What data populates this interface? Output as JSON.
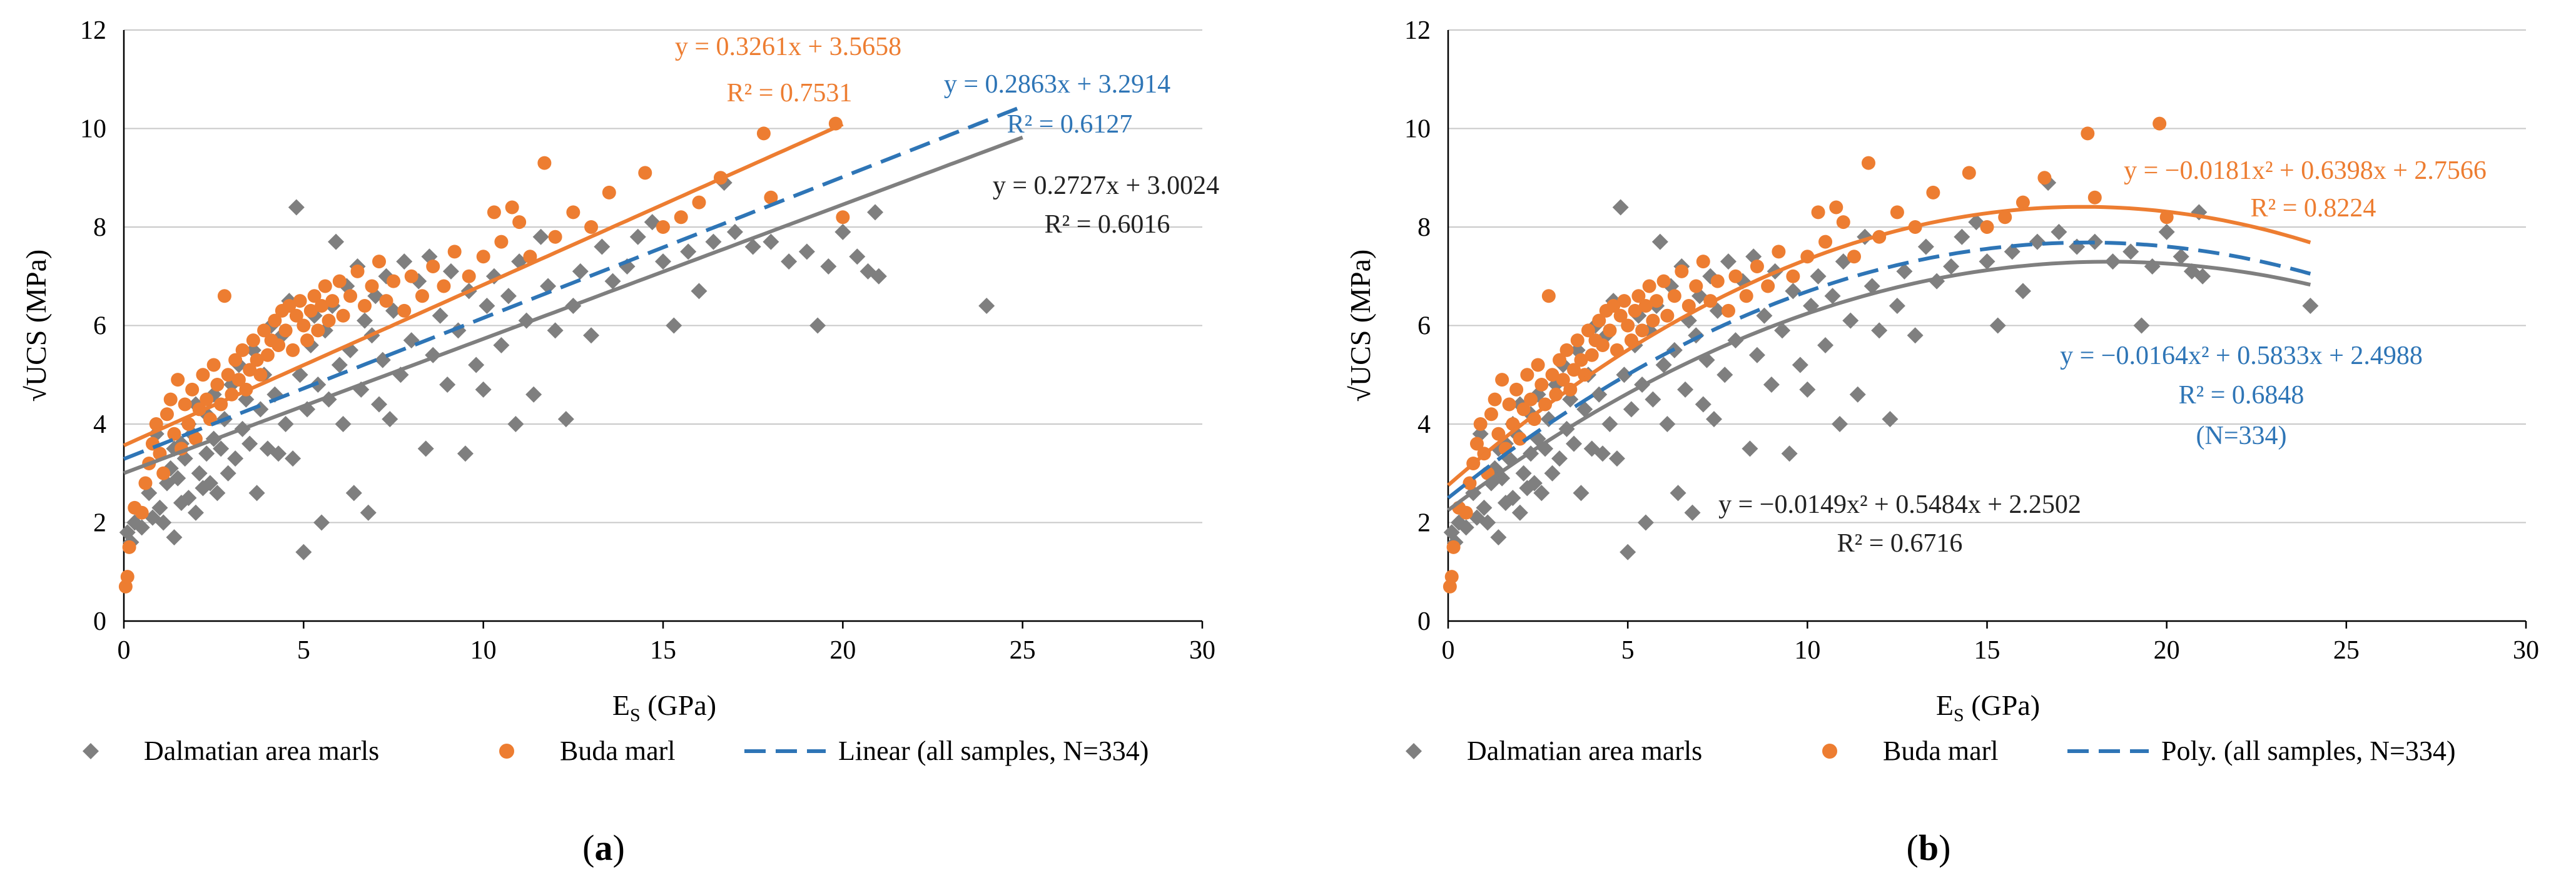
{
  "colors": {
    "grey": "#7f7f7f",
    "orange": "#ed7d31",
    "blue": "#2e75b6",
    "dark_eq": "#222222",
    "axis": "#000000",
    "grid": "#c8c8c8"
  },
  "chart_data": [
    {
      "id": "a",
      "panel_label": "a",
      "type": "scatter",
      "title": "",
      "xlabel": "E",
      "xlabel_sub": "S",
      "xlabel_unit": " (GPa)",
      "ylabel": "√UCS (MPa)",
      "xlim": [
        0,
        30
      ],
      "ylim": [
        0,
        12
      ],
      "x_ticks": [
        "0",
        "5",
        "10",
        "15",
        "20",
        "25",
        "30"
      ],
      "y_ticks": [
        "0",
        "2",
        "4",
        "6",
        "8",
        "10",
        "12"
      ],
      "grid": true,
      "legend_position": "bottom",
      "legend": [
        {
          "label": "Dalmatian area marls",
          "marker": "diamond",
          "color": "#7f7f7f"
        },
        {
          "label": "Buda marl",
          "marker": "circle",
          "color": "#ed7d31"
        },
        {
          "label": "Linear (all samples, N=334)",
          "marker": "dashed-line",
          "color": "#2e75b6"
        }
      ],
      "fits": [
        {
          "name": "Buda marl",
          "kind": "linear",
          "a": 0.3261,
          "b": 3.5658,
          "x_range": [
            0,
            20
          ],
          "color": "#ed7d31",
          "dashed": false,
          "label": "y = 0.3261x + 3.5658",
          "r2": "R² = 0.7531"
        },
        {
          "name": "all samples",
          "kind": "linear",
          "a": 0.2863,
          "b": 3.2914,
          "x_range": [
            0,
            25
          ],
          "color": "#2e75b6",
          "dashed": true,
          "label": "y = 0.2863x + 3.2914",
          "r2": "R² = 0.6127"
        },
        {
          "name": "Dalmatian area marls",
          "kind": "linear",
          "a": 0.2727,
          "b": 3.0024,
          "x_range": [
            0,
            25
          ],
          "color": "#7f7f7f",
          "dashed": false,
          "label": "y = 0.2727x + 3.0024",
          "r2": "R² = 0.6016"
        }
      ]
    },
    {
      "id": "b",
      "panel_label": "b",
      "type": "scatter",
      "title": "",
      "xlabel": "E",
      "xlabel_sub": "S",
      "xlabel_unit": " (GPa)",
      "ylabel": "√UCS (MPa)",
      "xlim": [
        0,
        30
      ],
      "ylim": [
        0,
        12
      ],
      "x_ticks": [
        "0",
        "5",
        "10",
        "15",
        "20",
        "25",
        "30"
      ],
      "y_ticks": [
        "0",
        "2",
        "4",
        "6",
        "8",
        "10",
        "12"
      ],
      "grid": true,
      "legend_position": "bottom",
      "legend": [
        {
          "label": "Dalmatian area marls",
          "marker": "diamond",
          "color": "#7f7f7f"
        },
        {
          "label": "Buda marl",
          "marker": "circle",
          "color": "#ed7d31"
        },
        {
          "label": "Poly. (all samples, N=334)",
          "marker": "dashed-line",
          "color": "#2e75b6"
        }
      ],
      "fits": [
        {
          "name": "Buda marl",
          "kind": "poly2",
          "c2": -0.0181,
          "c1": 0.6398,
          "c0": 2.7566,
          "x_range": [
            0,
            24
          ],
          "color": "#ed7d31",
          "dashed": false,
          "label": "y = −0.0181x² + 0.6398x + 2.7566",
          "r2": "R² = 0.8224"
        },
        {
          "name": "all samples",
          "kind": "poly2",
          "c2": -0.0164,
          "c1": 0.5833,
          "c0": 2.4988,
          "x_range": [
            0,
            24
          ],
          "color": "#2e75b6",
          "dashed": true,
          "label": "y = −0.0164x² + 0.5833x + 2.4988",
          "r2": "R² = 0.6848",
          "n_label": "(N=334)"
        },
        {
          "name": "Dalmatian area marls",
          "kind": "poly2",
          "c2": -0.0149,
          "c1": 0.5484,
          "c0": 2.2502,
          "x_range": [
            0,
            24
          ],
          "color": "#7f7f7f",
          "dashed": false,
          "label": "y = −0.0149x² + 0.5484x + 2.2502",
          "r2": "R² = 0.6716"
        }
      ]
    }
  ],
  "series": {
    "dalmatian": {
      "name": "Dalmatian area marls",
      "points": [
        [
          0.1,
          1.8
        ],
        [
          0.2,
          1.6
        ],
        [
          0.3,
          2.0
        ],
        [
          0.5,
          1.9
        ],
        [
          0.7,
          2.6
        ],
        [
          0.8,
          2.1
        ],
        [
          0.9,
          3.8
        ],
        [
          1.0,
          2.3
        ],
        [
          1.1,
          2.0
        ],
        [
          1.2,
          2.8
        ],
        [
          1.3,
          3.1
        ],
        [
          1.4,
          3.5
        ],
        [
          1.4,
          1.7
        ],
        [
          1.5,
          2.9
        ],
        [
          1.6,
          2.4
        ],
        [
          1.6,
          3.6
        ],
        [
          1.7,
          3.3
        ],
        [
          1.8,
          4.0
        ],
        [
          1.8,
          2.5
        ],
        [
          1.9,
          3.8
        ],
        [
          2.0,
          2.2
        ],
        [
          2.0,
          4.4
        ],
        [
          2.1,
          3.0
        ],
        [
          2.2,
          2.7
        ],
        [
          2.3,
          4.2
        ],
        [
          2.3,
          3.4
        ],
        [
          2.4,
          2.8
        ],
        [
          2.5,
          3.7
        ],
        [
          2.5,
          4.6
        ],
        [
          2.6,
          2.6
        ],
        [
          2.7,
          3.5
        ],
        [
          2.8,
          4.1
        ],
        [
          2.9,
          3.0
        ],
        [
          3.0,
          4.8
        ],
        [
          3.1,
          3.3
        ],
        [
          3.2,
          5.2
        ],
        [
          3.3,
          3.9
        ],
        [
          3.4,
          4.5
        ],
        [
          3.5,
          3.6
        ],
        [
          3.6,
          5.5
        ],
        [
          3.7,
          2.6
        ],
        [
          3.8,
          4.3
        ],
        [
          3.9,
          5.0
        ],
        [
          4.0,
          3.5
        ],
        [
          4.1,
          6.0
        ],
        [
          4.2,
          4.6
        ],
        [
          4.3,
          3.4
        ],
        [
          4.4,
          5.8
        ],
        [
          4.5,
          4.0
        ],
        [
          4.6,
          6.5
        ],
        [
          4.7,
          3.3
        ],
        [
          4.8,
          8.4
        ],
        [
          4.9,
          5.0
        ],
        [
          5.0,
          1.4
        ],
        [
          5.1,
          4.3
        ],
        [
          5.2,
          5.6
        ],
        [
          5.3,
          6.2
        ],
        [
          5.4,
          4.8
        ],
        [
          5.5,
          2.0
        ],
        [
          5.6,
          5.9
        ],
        [
          5.7,
          4.5
        ],
        [
          5.8,
          6.4
        ],
        [
          5.9,
          7.7
        ],
        [
          6.0,
          5.2
        ],
        [
          6.1,
          4.0
        ],
        [
          6.2,
          6.8
        ],
        [
          6.3,
          5.5
        ],
        [
          6.4,
          2.6
        ],
        [
          6.5,
          7.2
        ],
        [
          6.6,
          4.7
        ],
        [
          6.7,
          6.1
        ],
        [
          6.8,
          2.2
        ],
        [
          6.9,
          5.8
        ],
        [
          7.0,
          6.6
        ],
        [
          7.1,
          4.4
        ],
        [
          7.2,
          5.3
        ],
        [
          7.3,
          7.0
        ],
        [
          7.4,
          4.1
        ],
        [
          7.5,
          6.3
        ],
        [
          7.7,
          5.0
        ],
        [
          7.8,
          7.3
        ],
        [
          8.0,
          5.7
        ],
        [
          8.2,
          6.9
        ],
        [
          8.4,
          3.5
        ],
        [
          8.5,
          7.4
        ],
        [
          8.6,
          5.4
        ],
        [
          8.8,
          6.2
        ],
        [
          9.0,
          4.8
        ],
        [
          9.1,
          7.1
        ],
        [
          9.3,
          5.9
        ],
        [
          9.5,
          3.4
        ],
        [
          9.6,
          6.7
        ],
        [
          9.8,
          5.2
        ],
        [
          10.0,
          4.7
        ],
        [
          10.1,
          6.4
        ],
        [
          10.3,
          7.0
        ],
        [
          10.5,
          5.6
        ],
        [
          10.7,
          6.6
        ],
        [
          10.9,
          4.0
        ],
        [
          11.0,
          7.3
        ],
        [
          11.2,
          6.1
        ],
        [
          11.4,
          4.6
        ],
        [
          11.6,
          7.8
        ],
        [
          11.8,
          6.8
        ],
        [
          12.0,
          5.9
        ],
        [
          12.3,
          4.1
        ],
        [
          12.5,
          6.4
        ],
        [
          12.7,
          7.1
        ],
        [
          13.0,
          5.8
        ],
        [
          13.3,
          7.6
        ],
        [
          13.6,
          6.9
        ],
        [
          14.0,
          7.2
        ],
        [
          14.3,
          7.8
        ],
        [
          14.7,
          8.1
        ],
        [
          15.0,
          7.3
        ],
        [
          15.3,
          6.0
        ],
        [
          15.7,
          7.5
        ],
        [
          16.0,
          6.7
        ],
        [
          16.4,
          7.7
        ],
        [
          16.7,
          8.9
        ],
        [
          17.0,
          7.9
        ],
        [
          17.5,
          7.6
        ],
        [
          18.0,
          7.7
        ],
        [
          18.5,
          7.3
        ],
        [
          19.0,
          7.5
        ],
        [
          19.3,
          6.0
        ],
        [
          19.6,
          7.2
        ],
        [
          20.0,
          7.9
        ],
        [
          20.4,
          7.4
        ],
        [
          20.7,
          7.1
        ],
        [
          20.9,
          8.3
        ],
        [
          21.0,
          7.0
        ],
        [
          24.0,
          6.4
        ]
      ]
    },
    "buda": {
      "name": "Buda marl",
      "points": [
        [
          0.05,
          0.7
        ],
        [
          0.1,
          0.9
        ],
        [
          0.15,
          1.5
        ],
        [
          0.3,
          2.3
        ],
        [
          0.5,
          2.2
        ],
        [
          0.6,
          2.8
        ],
        [
          0.7,
          3.2
        ],
        [
          0.8,
          3.6
        ],
        [
          0.9,
          4.0
        ],
        [
          1.0,
          3.4
        ],
        [
          1.1,
          3.0
        ],
        [
          1.2,
          4.2
        ],
        [
          1.3,
          4.5
        ],
        [
          1.4,
          3.8
        ],
        [
          1.5,
          4.9
        ],
        [
          1.6,
          3.5
        ],
        [
          1.7,
          4.4
        ],
        [
          1.8,
          4.0
        ],
        [
          1.9,
          4.7
        ],
        [
          2.0,
          3.7
        ],
        [
          2.1,
          4.3
        ],
        [
          2.2,
          5.0
        ],
        [
          2.3,
          4.5
        ],
        [
          2.4,
          4.1
        ],
        [
          2.5,
          5.2
        ],
        [
          2.6,
          4.8
        ],
        [
          2.7,
          4.4
        ],
        [
          2.8,
          6.6
        ],
        [
          2.9,
          5.0
        ],
        [
          3.0,
          4.6
        ],
        [
          3.1,
          5.3
        ],
        [
          3.2,
          4.9
        ],
        [
          3.3,
          5.5
        ],
        [
          3.4,
          4.7
        ],
        [
          3.5,
          5.1
        ],
        [
          3.6,
          5.7
        ],
        [
          3.7,
          5.3
        ],
        [
          3.8,
          5.0
        ],
        [
          3.9,
          5.9
        ],
        [
          4.0,
          5.4
        ],
        [
          4.1,
          5.7
        ],
        [
          4.2,
          6.1
        ],
        [
          4.3,
          5.6
        ],
        [
          4.4,
          6.3
        ],
        [
          4.5,
          5.9
        ],
        [
          4.6,
          6.4
        ],
        [
          4.7,
          5.5
        ],
        [
          4.8,
          6.2
        ],
        [
          4.9,
          6.5
        ],
        [
          5.0,
          6.0
        ],
        [
          5.1,
          5.7
        ],
        [
          5.2,
          6.3
        ],
        [
          5.3,
          6.6
        ],
        [
          5.4,
          5.9
        ],
        [
          5.5,
          6.4
        ],
        [
          5.6,
          6.8
        ],
        [
          5.7,
          6.1
        ],
        [
          5.8,
          6.5
        ],
        [
          6.0,
          6.9
        ],
        [
          6.1,
          6.2
        ],
        [
          6.3,
          6.6
        ],
        [
          6.5,
          7.1
        ],
        [
          6.7,
          6.4
        ],
        [
          6.9,
          6.8
        ],
        [
          7.1,
          7.3
        ],
        [
          7.3,
          6.5
        ],
        [
          7.5,
          6.9
        ],
        [
          7.8,
          6.3
        ],
        [
          8.0,
          7.0
        ],
        [
          8.3,
          6.6
        ],
        [
          8.6,
          7.2
        ],
        [
          8.9,
          6.8
        ],
        [
          9.2,
          7.5
        ],
        [
          9.6,
          7.0
        ],
        [
          10.0,
          7.4
        ],
        [
          10.3,
          8.3
        ],
        [
          10.5,
          7.7
        ],
        [
          10.8,
          8.4
        ],
        [
          11.0,
          8.1
        ],
        [
          11.3,
          7.4
        ],
        [
          11.7,
          9.3
        ],
        [
          12.0,
          7.8
        ],
        [
          12.5,
          8.3
        ],
        [
          13.0,
          8.0
        ],
        [
          13.5,
          8.7
        ],
        [
          14.5,
          9.1
        ],
        [
          15.0,
          8.0
        ],
        [
          15.5,
          8.2
        ],
        [
          16.0,
          8.5
        ],
        [
          16.6,
          9.0
        ],
        [
          17.8,
          9.9
        ],
        [
          18.0,
          8.6
        ],
        [
          19.8,
          10.1
        ],
        [
          20.0,
          8.2
        ]
      ]
    }
  }
}
